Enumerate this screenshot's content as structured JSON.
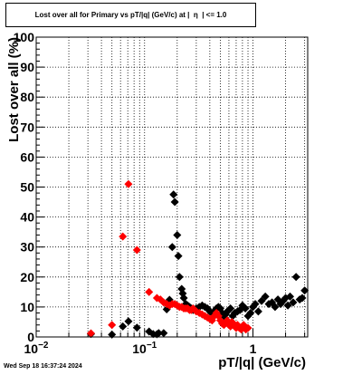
{
  "title": "Lost over all for Primary vs pT/|q| (GeV/c) at |  η  | <= 1.0",
  "timestamp": "Wed Sep 18 16:37:24 2024",
  "chart_data": {
    "type": "scatter",
    "title": "Lost over all for Primary vs pT/|q| (GeV/c) at |  η  | <= 1.0",
    "xlabel": "pT/|q| (GeV/c)",
    "ylabel": "Lost over all (%)",
    "xscale": "log",
    "xlim": [
      0.01,
      3.2
    ],
    "ylim": [
      0,
      100
    ],
    "grid": true,
    "x_ticks": [
      {
        "value": 0.01,
        "label": "10",
        "exp": "−2"
      },
      {
        "value": 0.1,
        "label": "10",
        "exp": "−1"
      },
      {
        "value": 1,
        "label": "1",
        "exp": ""
      }
    ],
    "y_ticks": [
      {
        "value": 0,
        "label": "0"
      },
      {
        "value": 10,
        "label": "10"
      },
      {
        "value": 20,
        "label": "20"
      },
      {
        "value": 30,
        "label": "30"
      },
      {
        "value": 40,
        "label": "40"
      },
      {
        "value": 50,
        "label": "50"
      },
      {
        "value": 60,
        "label": "60"
      },
      {
        "value": 70,
        "label": "70"
      },
      {
        "value": 80,
        "label": "80"
      },
      {
        "value": 90,
        "label": "90"
      },
      {
        "value": 100,
        "label": "100"
      }
    ],
    "series": [
      {
        "color": "#000000",
        "points": [
          [
            0.032,
            1.0
          ],
          [
            0.05,
            0.8
          ],
          [
            0.063,
            3.5
          ],
          [
            0.071,
            5.2
          ],
          [
            0.085,
            3.1
          ],
          [
            0.11,
            1.8
          ],
          [
            0.12,
            1.0
          ],
          [
            0.13,
            0.9
          ],
          [
            0.135,
            1.3
          ],
          [
            0.15,
            1.3
          ],
          [
            0.16,
            9.2
          ],
          [
            0.17,
            12.4
          ],
          [
            0.18,
            30.0
          ],
          [
            0.185,
            47.5
          ],
          [
            0.19,
            45.0
          ],
          [
            0.2,
            34.0
          ],
          [
            0.205,
            27.0
          ],
          [
            0.21,
            20.0
          ],
          [
            0.22,
            16.0
          ],
          [
            0.225,
            14.5
          ],
          [
            0.23,
            13.0
          ],
          [
            0.24,
            11.0
          ],
          [
            0.25,
            10.5
          ],
          [
            0.26,
            10.0
          ],
          [
            0.27,
            9.5
          ],
          [
            0.28,
            9.0
          ],
          [
            0.3,
            9.5
          ],
          [
            0.32,
            10.0
          ],
          [
            0.34,
            10.5
          ],
          [
            0.36,
            10.0
          ],
          [
            0.38,
            9.5
          ],
          [
            0.4,
            8.5
          ],
          [
            0.42,
            8.0
          ],
          [
            0.44,
            8.5
          ],
          [
            0.46,
            9.5
          ],
          [
            0.48,
            10.0
          ],
          [
            0.5,
            9.5
          ],
          [
            0.52,
            8.0
          ],
          [
            0.54,
            7.0
          ],
          [
            0.56,
            7.5
          ],
          [
            0.58,
            8.5
          ],
          [
            0.6,
            9.0
          ],
          [
            0.62,
            9.5
          ],
          [
            0.65,
            7.0
          ],
          [
            0.68,
            8.0
          ],
          [
            0.72,
            8.5
          ],
          [
            0.76,
            9.0
          ],
          [
            0.8,
            10.5
          ],
          [
            0.85,
            9.5
          ],
          [
            0.9,
            7.0
          ],
          [
            0.95,
            8.0
          ],
          [
            1.0,
            10.0
          ],
          [
            1.05,
            11.0
          ],
          [
            1.12,
            8.5
          ],
          [
            1.2,
            12.0
          ],
          [
            1.3,
            13.5
          ],
          [
            1.4,
            11.0
          ],
          [
            1.5,
            11.5
          ],
          [
            1.6,
            10.0
          ],
          [
            1.7,
            12.5
          ],
          [
            1.8,
            11.0
          ],
          [
            1.9,
            12.0
          ],
          [
            2.0,
            13.0
          ],
          [
            2.1,
            10.5
          ],
          [
            2.2,
            13.5
          ],
          [
            2.35,
            11.5
          ],
          [
            2.5,
            20.0
          ],
          [
            2.7,
            12.5
          ],
          [
            2.85,
            13.0
          ],
          [
            3.0,
            15.5
          ]
        ]
      },
      {
        "color": "#ff0000",
        "points": [
          [
            0.032,
            1.2
          ],
          [
            0.05,
            4.0
          ],
          [
            0.063,
            33.5
          ],
          [
            0.071,
            51.0
          ],
          [
            0.085,
            29.0
          ],
          [
            0.11,
            15.0
          ],
          [
            0.13,
            13.0
          ],
          [
            0.14,
            12.5
          ],
          [
            0.15,
            11.5
          ],
          [
            0.16,
            11.0
          ],
          [
            0.17,
            10.5
          ],
          [
            0.18,
            11.0
          ],
          [
            0.19,
            11.0
          ],
          [
            0.2,
            10.5
          ],
          [
            0.21,
            10.0
          ],
          [
            0.22,
            10.0
          ],
          [
            0.23,
            9.5
          ],
          [
            0.24,
            9.5
          ],
          [
            0.25,
            9.5
          ],
          [
            0.26,
            9.0
          ],
          [
            0.27,
            9.0
          ],
          [
            0.28,
            9.5
          ],
          [
            0.3,
            8.5
          ],
          [
            0.32,
            8.0
          ],
          [
            0.34,
            7.5
          ],
          [
            0.36,
            7.0
          ],
          [
            0.38,
            6.5
          ],
          [
            0.4,
            6.0
          ],
          [
            0.42,
            5.5
          ],
          [
            0.44,
            7.0
          ],
          [
            0.46,
            8.0
          ],
          [
            0.48,
            7.0
          ],
          [
            0.5,
            5.5
          ],
          [
            0.52,
            4.5
          ],
          [
            0.54,
            4.0
          ],
          [
            0.56,
            5.0
          ],
          [
            0.58,
            5.5
          ],
          [
            0.6,
            4.0
          ],
          [
            0.62,
            3.5
          ],
          [
            0.64,
            5.0
          ],
          [
            0.66,
            4.5
          ],
          [
            0.68,
            3.5
          ],
          [
            0.7,
            3.0
          ],
          [
            0.72,
            4.0
          ],
          [
            0.75,
            3.0
          ],
          [
            0.78,
            2.5
          ],
          [
            0.82,
            4.0
          ],
          [
            0.86,
            2.5
          ],
          [
            0.9,
            3.0
          ]
        ]
      }
    ]
  }
}
